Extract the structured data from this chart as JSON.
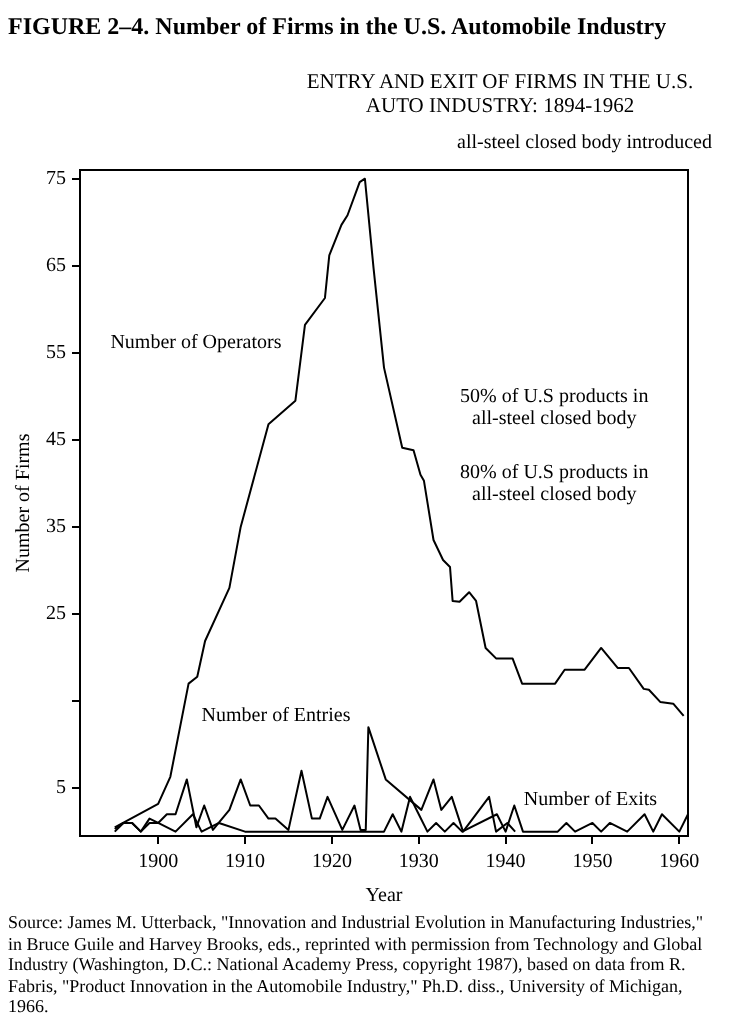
{
  "chart_data": {
    "type": "line",
    "title": "FIGURE 2–4. Number of Firms in the U.S. Automobile Industry",
    "subtitle": "ENTRY AND EXIT OF FIRMS IN THE U.S.\nAUTO INDUSTRY: 1894-1962",
    "xlabel": "Year",
    "ylabel": "Number of Firms",
    "xlim": [
      1891,
      1961
    ],
    "xticks": [
      1900,
      1910,
      1920,
      1930,
      1940,
      1950,
      1960
    ],
    "ylim": [
      -0.5,
      76
    ],
    "yticks": [
      5,
      {
        "value": 15,
        "label": null
      },
      25,
      35,
      45,
      55,
      65,
      75
    ],
    "grid": false,
    "legend": false,
    "marker": "none",
    "line_style": "solid",
    "series": [
      {
        "name": "Number of Operators",
        "color": "#000000",
        "x": [
          1895,
          1900,
          1901.4,
          1903.5,
          1904.5,
          1905.4,
          1908.2,
          1909.5,
          1912.7,
          1915.8,
          1916.9,
          1919.2,
          1919.7,
          1921.1,
          1921.8,
          1923.2,
          1923.8,
          1924.8,
          1926,
          1928.1,
          1929.4,
          1930.2,
          1930.6,
          1931.7,
          1932.8,
          1933.6,
          1933.9,
          1934.7,
          1935.8,
          1936.6,
          1937.7,
          1938.9,
          1940.8,
          1941.9,
          1945.7,
          1946.8,
          1949.1,
          1951,
          1952.9,
          1954.2,
          1955.9,
          1956.5,
          1957.8,
          1959.3,
          1960.5
        ],
        "values": [
          0.5,
          3.2,
          6.3,
          17,
          17.8,
          21.9,
          28,
          35,
          46.8,
          49.5,
          58.2,
          61.3,
          66.2,
          69.7,
          70.8,
          74.6,
          75,
          64.7,
          53.3,
          44.1,
          43.8,
          41,
          40.3,
          33.5,
          31.2,
          30.4,
          26.5,
          26.4,
          27.5,
          26.5,
          21.1,
          19.9,
          19.9,
          17,
          17,
          18.6,
          18.6,
          21.1,
          18.8,
          18.8,
          16.4,
          16.3,
          14.9,
          14.7,
          13.3
        ]
      },
      {
        "name": "Number of Entries",
        "color": "#000000",
        "x": [
          1895,
          1896,
          1897,
          1898,
          1899,
          1900,
          1901,
          1902,
          1903.3,
          1904.4,
          1905.3,
          1906.3,
          1908.2,
          1909.5,
          1910.6,
          1911.6,
          1912.7,
          1913.5,
          1915,
          1916.5,
          1917.7,
          1918.6,
          1919.5,
          1921.2,
          1922.6,
          1923.3,
          1923.9,
          1924.2,
          1926.2,
          1930.3,
          1931.7,
          1932.6,
          1933.8,
          1935.1,
          1938.1,
          1938.9,
          1940.2,
          1941.1
        ],
        "values": [
          0.3,
          1,
          1,
          0,
          1.5,
          1,
          2,
          2,
          6,
          0.5,
          3,
          0.2,
          2.5,
          6,
          3,
          3,
          1.5,
          1.5,
          0.2,
          7,
          1.5,
          1.5,
          4,
          0.2,
          3,
          0.2,
          0.2,
          12,
          6,
          2.5,
          6,
          2.5,
          4,
          0,
          4,
          0,
          1,
          0
        ]
      },
      {
        "name": "Number of Exits",
        "color": "#000000",
        "x": [
          1895,
          1896,
          1897,
          1898,
          1899,
          1900,
          1902,
          1904,
          1905,
          1907,
          1910,
          1913,
          1920,
          1926,
          1927,
          1928,
          1929,
          1930,
          1931,
          1932,
          1933,
          1934,
          1935,
          1939,
          1940,
          1941,
          1942,
          1946,
          1947,
          1948,
          1950,
          1951,
          1952,
          1954,
          1956,
          1957,
          1958,
          1960,
          1961
        ],
        "values": [
          0,
          1,
          1,
          0,
          1,
          1,
          0,
          2,
          0,
          1,
          0,
          0,
          0,
          0,
          2,
          0,
          4,
          2,
          0,
          1,
          0,
          1,
          0,
          2,
          0,
          3,
          0,
          0,
          1,
          0,
          1,
          0,
          1,
          0,
          2,
          0,
          2,
          0,
          2
        ]
      }
    ],
    "annotations": [
      "all-steel closed body introduced",
      "50% of U.S products in\nall-steel closed body",
      "80% of U.S products in\nall-steel closed body",
      "Source: James M. Utterback, \"Innovation and Industrial Evolution in Manufacturing Industries,\" in Bruce Guile and Harvey Brooks, eds., reprinted with permission from Technology and Global Industry (Washington, D.C.: National Academy Press, copyright 1987), based on data from R. Fabris, \"Product Innovation in the Automobile Industry,\" Ph.D. diss., University of Michigan, 1966."
    ]
  }
}
